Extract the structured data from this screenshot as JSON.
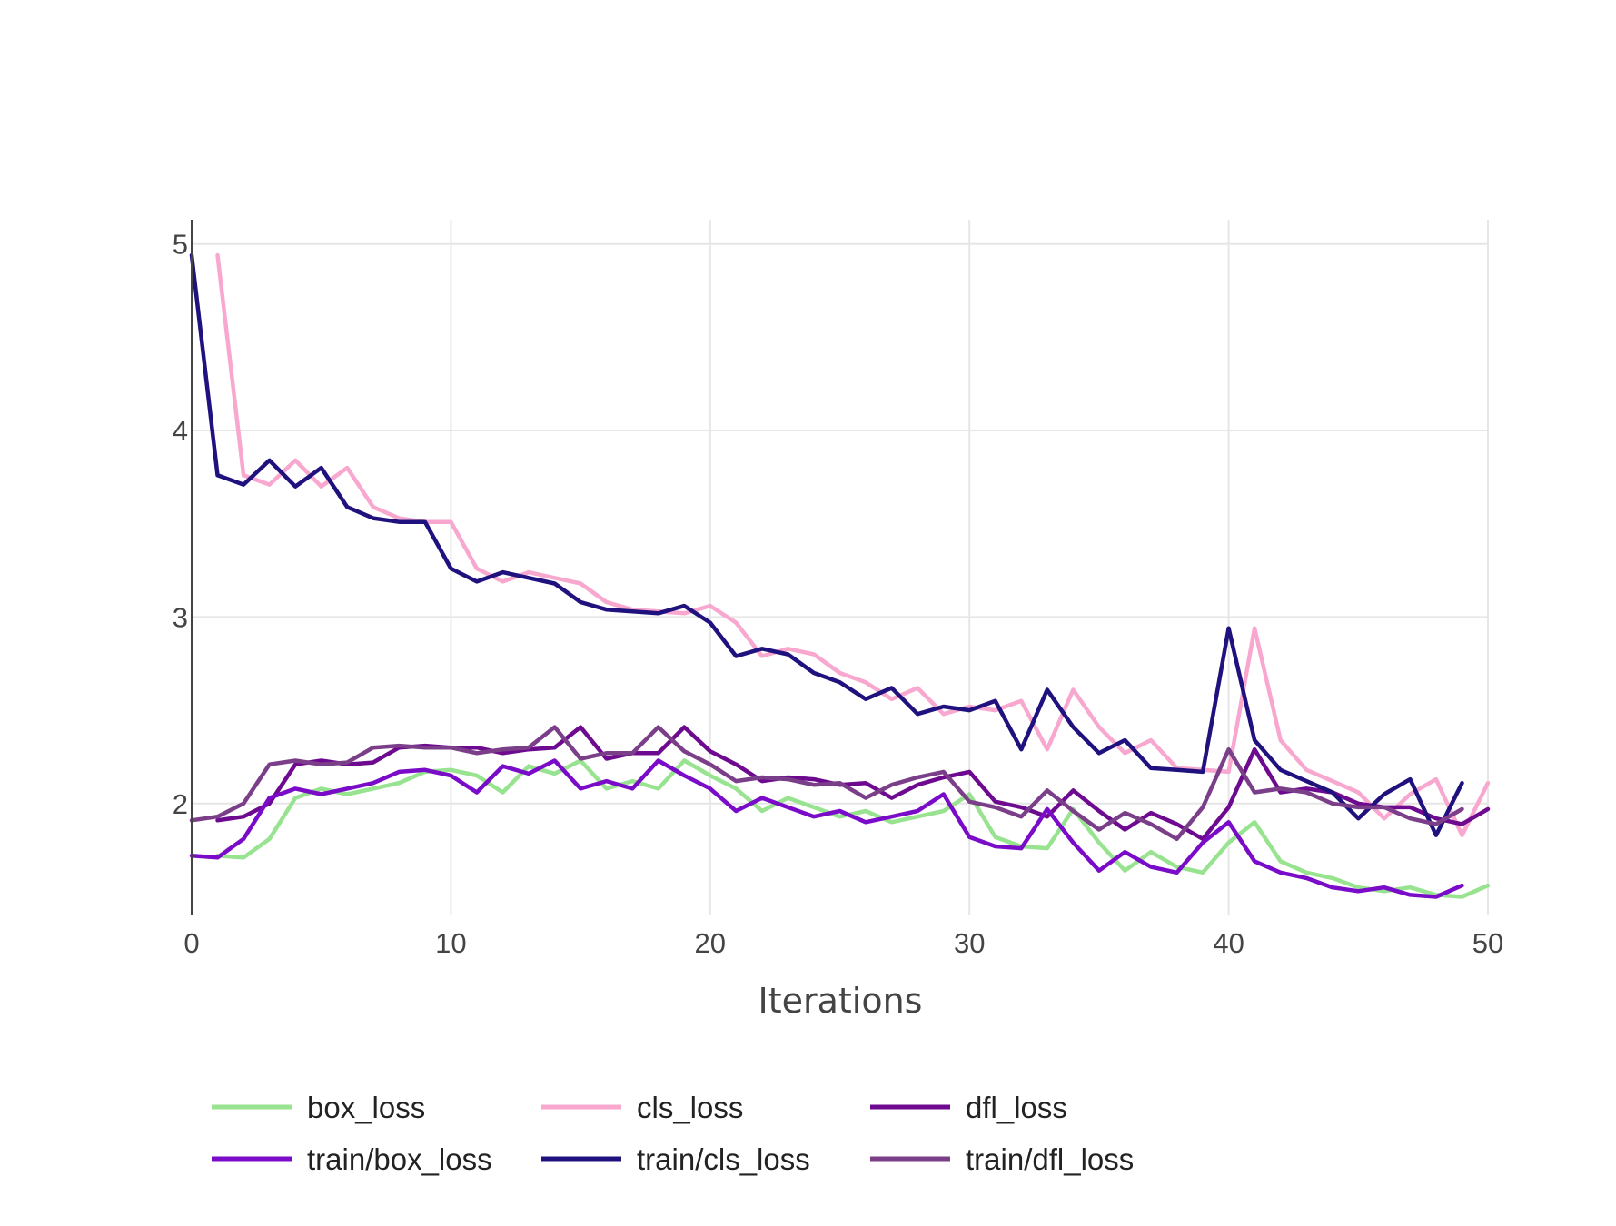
{
  "chart_data": {
    "type": "line",
    "title": "",
    "xlabel": "Iterations",
    "ylabel": "",
    "xlim": [
      0,
      50
    ],
    "ylim": [
      1.4,
      5.13
    ],
    "grid": true,
    "legend_position": "bottom",
    "x_ticks": [
      {
        "value": 0,
        "label": "0"
      },
      {
        "value": 10,
        "label": "10"
      },
      {
        "value": 20,
        "label": "20"
      },
      {
        "value": 30,
        "label": "30"
      },
      {
        "value": 40,
        "label": "40"
      },
      {
        "value": 50,
        "label": "50"
      }
    ],
    "y_ticks": [
      {
        "value": 2,
        "label": "2"
      },
      {
        "value": 3,
        "label": "3"
      },
      {
        "value": 4,
        "label": "4"
      },
      {
        "value": 5,
        "label": "5"
      }
    ],
    "series": [
      {
        "name": "box_loss",
        "color": "#98e38f",
        "x_start": 1,
        "values": [
          1.72,
          1.71,
          1.81,
          2.03,
          2.08,
          2.05,
          2.08,
          2.11,
          2.17,
          2.18,
          2.15,
          2.06,
          2.2,
          2.16,
          2.23,
          2.08,
          2.12,
          2.08,
          2.23,
          2.15,
          2.08,
          1.96,
          2.03,
          1.98,
          1.93,
          1.96,
          1.9,
          1.93,
          1.96,
          2.05,
          1.82,
          1.77,
          1.76,
          1.97,
          1.79,
          1.64,
          1.74,
          1.66,
          1.63,
          1.79,
          1.9,
          1.69,
          1.63,
          1.6,
          1.55,
          1.53,
          1.55,
          1.51,
          1.5,
          1.56
        ]
      },
      {
        "name": "cls_loss",
        "color": "#f8a8cf",
        "x_start": 1,
        "values": [
          4.94,
          3.76,
          3.71,
          3.84,
          3.7,
          3.8,
          3.59,
          3.53,
          3.51,
          3.51,
          3.26,
          3.19,
          3.24,
          3.21,
          3.18,
          3.08,
          3.04,
          3.03,
          3.02,
          3.06,
          2.97,
          2.79,
          2.83,
          2.8,
          2.7,
          2.65,
          2.56,
          2.62,
          2.48,
          2.52,
          2.5,
          2.55,
          2.29,
          2.61,
          2.41,
          2.27,
          2.34,
          2.19,
          2.18,
          2.17,
          2.94,
          2.34,
          2.18,
          2.12,
          2.06,
          1.92,
          2.05,
          2.13,
          1.83,
          2.11
        ]
      },
      {
        "name": "dfl_loss",
        "color": "#6e0a8f",
        "x_start": 1,
        "values": [
          1.91,
          1.93,
          2.0,
          2.21,
          2.23,
          2.21,
          2.22,
          2.3,
          2.31,
          2.3,
          2.3,
          2.27,
          2.29,
          2.3,
          2.41,
          2.24,
          2.27,
          2.27,
          2.41,
          2.28,
          2.21,
          2.12,
          2.14,
          2.13,
          2.1,
          2.11,
          2.03,
          2.1,
          2.14,
          2.17,
          2.01,
          1.98,
          1.93,
          2.07,
          1.96,
          1.86,
          1.95,
          1.89,
          1.81,
          1.98,
          2.29,
          2.06,
          2.08,
          2.06,
          2.0,
          1.98,
          1.98,
          1.92,
          1.89,
          1.97
        ]
      },
      {
        "name": "train/box_loss",
        "color": "#7a0bc8",
        "x_start": 0,
        "values": [
          1.72,
          1.71,
          1.81,
          2.03,
          2.08,
          2.05,
          2.08,
          2.11,
          2.17,
          2.18,
          2.15,
          2.06,
          2.2,
          2.16,
          2.23,
          2.08,
          2.12,
          2.08,
          2.23,
          2.15,
          2.08,
          1.96,
          2.03,
          1.98,
          1.93,
          1.96,
          1.9,
          1.93,
          1.96,
          2.05,
          1.82,
          1.77,
          1.76,
          1.97,
          1.79,
          1.64,
          1.74,
          1.66,
          1.63,
          1.79,
          1.9,
          1.69,
          1.63,
          1.6,
          1.55,
          1.53,
          1.55,
          1.51,
          1.5,
          1.56
        ]
      },
      {
        "name": "train/cls_loss",
        "color": "#1f117e",
        "x_start": 0,
        "values": [
          4.94,
          3.76,
          3.71,
          3.84,
          3.7,
          3.8,
          3.59,
          3.53,
          3.51,
          3.51,
          3.26,
          3.19,
          3.24,
          3.21,
          3.18,
          3.08,
          3.04,
          3.03,
          3.02,
          3.06,
          2.97,
          2.79,
          2.83,
          2.8,
          2.7,
          2.65,
          2.56,
          2.62,
          2.48,
          2.52,
          2.5,
          2.55,
          2.29,
          2.61,
          2.41,
          2.27,
          2.34,
          2.19,
          2.18,
          2.17,
          2.94,
          2.34,
          2.18,
          2.12,
          2.06,
          1.92,
          2.05,
          2.13,
          1.83,
          2.11
        ]
      },
      {
        "name": "train/dfl_loss",
        "color": "#7b3f8a",
        "x_start": 0,
        "values": [
          1.91,
          1.93,
          2.0,
          2.21,
          2.23,
          2.21,
          2.22,
          2.3,
          2.31,
          2.3,
          2.3,
          2.27,
          2.29,
          2.3,
          2.41,
          2.24,
          2.27,
          2.27,
          2.41,
          2.28,
          2.21,
          2.12,
          2.14,
          2.13,
          2.1,
          2.11,
          2.03,
          2.1,
          2.14,
          2.17,
          2.01,
          1.98,
          1.93,
          2.07,
          1.96,
          1.86,
          1.95,
          1.89,
          1.81,
          1.98,
          2.29,
          2.06,
          2.08,
          2.06,
          2.0,
          1.98,
          1.98,
          1.92,
          1.89,
          1.97
        ]
      }
    ]
  }
}
